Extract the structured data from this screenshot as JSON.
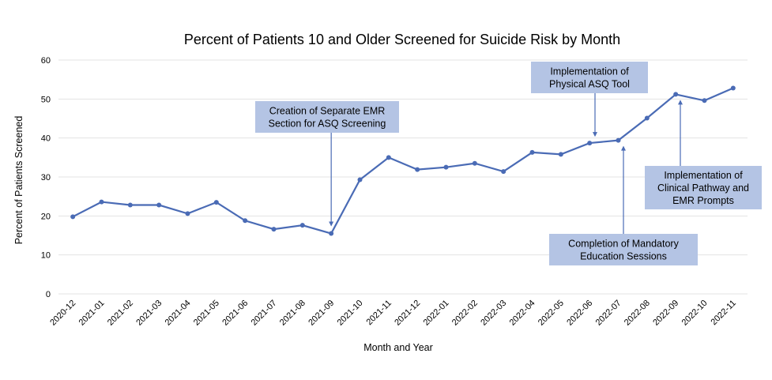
{
  "chart_data": {
    "type": "line",
    "title": "Percent of Patients 10 and Older Screened for Suicide Risk by Month",
    "xlabel": "Month and Year",
    "ylabel": "Percent of Patients Screened",
    "ylim": [
      0,
      60
    ],
    "yticks": [
      0,
      10,
      20,
      30,
      40,
      50,
      60
    ],
    "grid": true,
    "legend": "none",
    "categories": [
      "2020-12",
      "2021-01",
      "2021-02",
      "2021-03",
      "2021-04",
      "2021-05",
      "2021-06",
      "2021-07",
      "2021-08",
      "2021-09",
      "2021-10",
      "2021-11",
      "2021-12",
      "2022-01",
      "2022-02",
      "2022-03",
      "2022-04",
      "2022-05",
      "2022-06",
      "2022-07",
      "2022-08",
      "2022-09",
      "2022-10",
      "2022-11"
    ],
    "series": [
      {
        "color": "#4a6bb5",
        "values": [
          19.8,
          23.6,
          22.8,
          22.8,
          20.6,
          23.5,
          18.8,
          16.6,
          17.6,
          15.5,
          29.3,
          35.0,
          31.9,
          32.5,
          33.5,
          31.4,
          36.3,
          35.8,
          38.7,
          39.4,
          45.1,
          51.2,
          49.6,
          52.8
        ]
      }
    ],
    "annotations": [
      {
        "lines": [
          "Creation of Separate EMR",
          "Section for ASQ Screening"
        ],
        "target": "2021-09"
      },
      {
        "lines": [
          "Implementation of",
          "Physical ASQ Tool"
        ],
        "target": "2022-06"
      },
      {
        "lines": [
          "Completion of Mandatory",
          "Education Sessions"
        ],
        "target": "2022-07"
      },
      {
        "lines": [
          "Implementation of",
          "Clinical Pathway and",
          "EMR Prompts"
        ],
        "target": "2022-09"
      }
    ],
    "callout_color": "#b4c4e4"
  }
}
